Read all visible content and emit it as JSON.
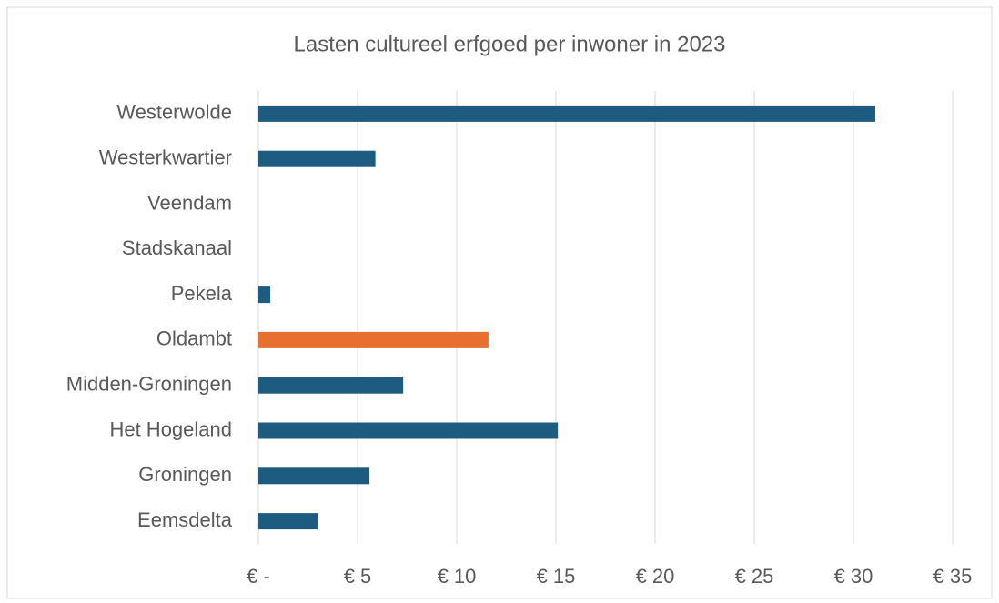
{
  "chart_data": {
    "type": "barh",
    "title": "Lasten cultureel erfgoed per inwoner in 2023",
    "categories": [
      "Westerwolde",
      "Westerkwartier",
      "Veendam",
      "Stadskanaal",
      "Pekela",
      "Oldambt",
      "Midden-Groningen",
      "Het Hogeland",
      "Groningen",
      "Eemsdelta"
    ],
    "values": [
      31.1,
      5.9,
      null,
      null,
      0.6,
      11.6,
      7.3,
      15.1,
      5.6,
      3.0
    ],
    "colors": [
      "#1e5b80",
      "#1e5b80",
      "#1e5b80",
      "#1e5b80",
      "#1e5b80",
      "#e8702f",
      "#1e5b80",
      "#1e5b80",
      "#1e5b80",
      "#1e5b80"
    ],
    "xlim": [
      0,
      35
    ],
    "xticks": [
      {
        "value": 0,
        "label": "€ -"
      },
      {
        "value": 5,
        "label": "€ 5"
      },
      {
        "value": 10,
        "label": "€ 10"
      },
      {
        "value": 15,
        "label": "€ 15"
      },
      {
        "value": 20,
        "label": "€ 20"
      },
      {
        "value": 25,
        "label": "€ 25"
      },
      {
        "value": 30,
        "label": "€ 30"
      },
      {
        "value": 35,
        "label": "€ 35"
      }
    ],
    "grid": true
  }
}
